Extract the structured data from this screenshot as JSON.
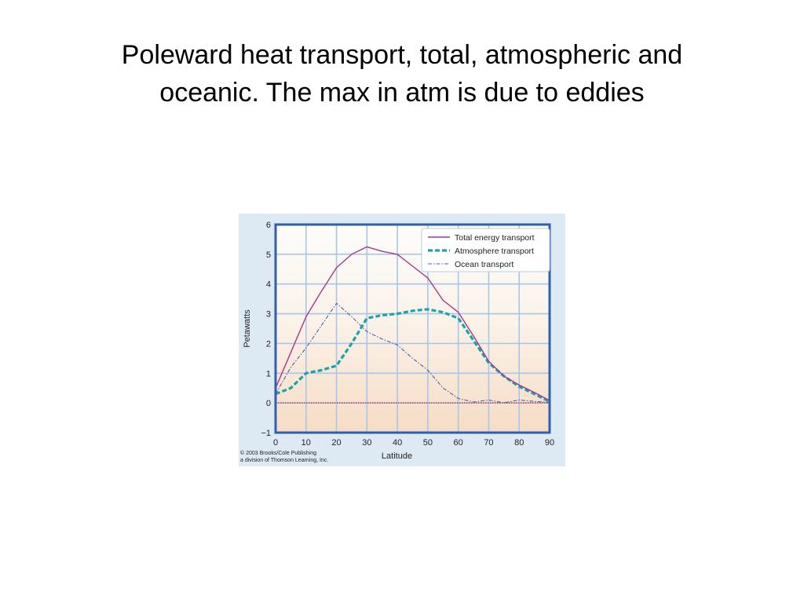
{
  "slide": {
    "title_line1": "Poleward heat transport, total, atmospheric and",
    "title_line2": "oceanic.  The max in atm is due to eddies"
  },
  "credit": {
    "line1": "© 2003 Brooks/Cole Publishing",
    "line2": "a division of Thomson Learning, Inc."
  },
  "colors": {
    "total": "#a03a8c",
    "atmosphere": "#1aa3a8",
    "ocean": "#4a64a0",
    "zero_line": "#c0202a",
    "plot_border": "#2f5fae",
    "grid": "#a9c6e8",
    "plot_bg_top": "#fdfcfa",
    "plot_bg_bottom": "#f6dcc4"
  },
  "chart_data": {
    "type": "line",
    "title": "",
    "xlabel": "Latitude",
    "ylabel": "Petawatts",
    "xlim": [
      0,
      90
    ],
    "ylim": [
      -1,
      6
    ],
    "xticks": [
      0,
      10,
      20,
      30,
      40,
      50,
      60,
      70,
      80,
      90
    ],
    "yticks": [
      -1,
      0,
      1,
      2,
      3,
      4,
      5,
      6
    ],
    "ytick_labels": [
      "−1",
      "0",
      "1",
      "2",
      "3",
      "4",
      "5",
      "6"
    ],
    "grid": true,
    "legend_position": "top-right",
    "reference_line": {
      "y": 0,
      "style": "dotted"
    },
    "series": [
      {
        "name": "Total energy transport",
        "style": "solid",
        "x": [
          0,
          5,
          10,
          15,
          20,
          25,
          30,
          35,
          40,
          45,
          50,
          55,
          60,
          65,
          70,
          75,
          80,
          85,
          90
        ],
        "y": [
          0.5,
          1.7,
          2.9,
          3.75,
          4.55,
          5.0,
          5.25,
          5.1,
          5.0,
          4.6,
          4.2,
          3.45,
          3.05,
          2.25,
          1.4,
          0.9,
          0.6,
          0.35,
          0.08
        ]
      },
      {
        "name": "Atmosphere transport",
        "style": "dashed",
        "x": [
          0,
          5,
          10,
          15,
          20,
          25,
          30,
          35,
          40,
          45,
          50,
          55,
          60,
          65,
          70,
          75,
          80,
          85,
          90
        ],
        "y": [
          0.3,
          0.5,
          1.0,
          1.1,
          1.25,
          2.0,
          2.85,
          2.95,
          3.0,
          3.1,
          3.15,
          3.05,
          2.85,
          2.1,
          1.35,
          0.9,
          0.55,
          0.3,
          0.05
        ]
      },
      {
        "name": "Ocean transport",
        "style": "dash-dot",
        "x": [
          0,
          5,
          10,
          15,
          20,
          25,
          30,
          35,
          40,
          45,
          50,
          55,
          60,
          65,
          70,
          75,
          80,
          85,
          90
        ],
        "y": [
          0.3,
          1.2,
          1.85,
          2.6,
          3.35,
          2.9,
          2.4,
          2.15,
          1.95,
          1.5,
          1.1,
          0.5,
          0.15,
          0.03,
          0.1,
          0.0,
          0.1,
          0.05,
          0.02
        ]
      }
    ]
  }
}
